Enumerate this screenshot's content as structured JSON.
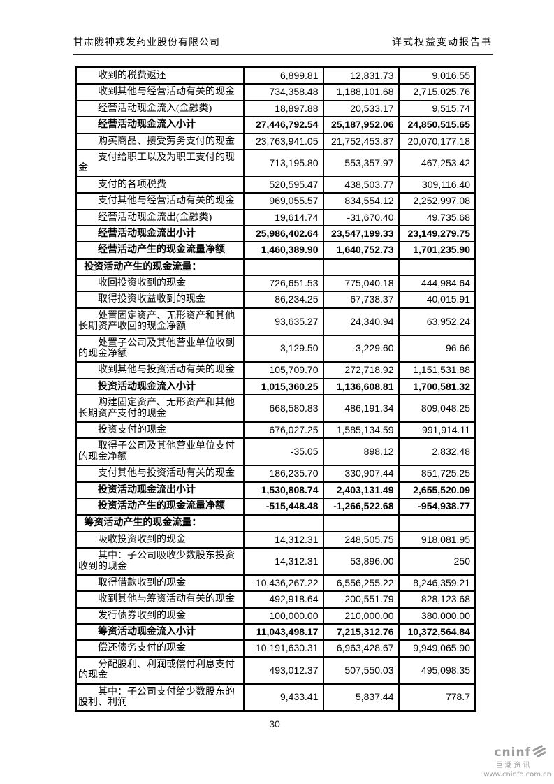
{
  "header": {
    "company": "甘肃陇神戎发药业股份有限公司",
    "doc_title": "详式权益变动报告书"
  },
  "table": {
    "rows": [
      {
        "label": "收到的税费返还",
        "style": "item",
        "values": [
          "6,899.81",
          "12,831.73",
          "9,016.55"
        ]
      },
      {
        "label": "收到其他与经营活动有关的现金",
        "style": "item",
        "values": [
          "734,358.48",
          "1,188,101.68",
          "2,715,025.76"
        ]
      },
      {
        "label": "经营活动现金流入(金融类)",
        "style": "item",
        "values": [
          "18,897.88",
          "20,533.17",
          "9,515.74"
        ]
      },
      {
        "label": "经营活动现金流入小计",
        "style": "subtotal",
        "values": [
          "27,446,792.54",
          "25,187,952.06",
          "24,850,515.65"
        ]
      },
      {
        "label": "购买商品、接受劳务支付的现金",
        "style": "item",
        "values": [
          "23,763,941.05",
          "21,752,453.87",
          "20,070,177.18"
        ]
      },
      {
        "label": "支付给职工以及为职工支付的现金",
        "style": "item",
        "values": [
          "713,195.80",
          "553,357.97",
          "467,253.42"
        ]
      },
      {
        "label": "支付的各项税费",
        "style": "item",
        "values": [
          "520,595.47",
          "438,503.77",
          "309,116.40"
        ]
      },
      {
        "label": "支付其他与经营活动有关的现金",
        "style": "item",
        "values": [
          "969,055.57",
          "834,554.12",
          "2,252,997.08"
        ]
      },
      {
        "label": "经营活动现金流出(金融类)",
        "style": "item",
        "values": [
          "19,614.74",
          "-31,670.40",
          "49,735.68"
        ]
      },
      {
        "label": "经营活动现金流出小计",
        "style": "subtotal",
        "values": [
          "25,986,402.64",
          "23,547,199.33",
          "23,149,279.75"
        ]
      },
      {
        "label": "经营活动产生的现金流量净额",
        "style": "subtotal",
        "values": [
          "1,460,389.90",
          "1,640,752.73",
          "1,701,235.90"
        ]
      },
      {
        "label": "投资活动产生的现金流量：",
        "style": "section",
        "values": [
          "",
          "",
          ""
        ]
      },
      {
        "label": "收回投资收到的现金",
        "style": "item",
        "values": [
          "726,651.53",
          "775,040.18",
          "444,984.64"
        ]
      },
      {
        "label": "取得投资收益收到的现金",
        "style": "item",
        "values": [
          "86,234.25",
          "67,738.37",
          "40,015.91"
        ]
      },
      {
        "label": "处置固定资产、无形资产和其他长期资产收回的现金净额",
        "style": "item",
        "values": [
          "93,635.27",
          "24,340.94",
          "63,952.24"
        ]
      },
      {
        "label": "处置子公司及其他营业单位收到的现金净额",
        "style": "item",
        "values": [
          "3,129.50",
          "-3,229.60",
          "96.66"
        ]
      },
      {
        "label": "收到其他与投资活动有关的现金",
        "style": "item",
        "values": [
          "105,709.70",
          "272,718.92",
          "1,151,531.88"
        ]
      },
      {
        "label": "投资活动现金流入小计",
        "style": "subtotal",
        "values": [
          "1,015,360.25",
          "1,136,608.81",
          "1,700,581.32"
        ]
      },
      {
        "label": "购建固定资产、无形资产和其他长期资产支付的现金",
        "style": "item",
        "values": [
          "668,580.83",
          "486,191.34",
          "809,048.25"
        ]
      },
      {
        "label": "投资支付的现金",
        "style": "item",
        "values": [
          "676,027.25",
          "1,585,134.59",
          "991,914.11"
        ]
      },
      {
        "label": "取得子公司及其他营业单位支付的现金净额",
        "style": "item",
        "values": [
          "-35.05",
          "898.12",
          "2,832.48"
        ]
      },
      {
        "label": "支付其他与投资活动有关的现金",
        "style": "item",
        "values": [
          "186,235.70",
          "330,907.44",
          "851,725.25"
        ]
      },
      {
        "label": "投资活动现金流出小计",
        "style": "subtotal",
        "values": [
          "1,530,808.74",
          "2,403,131.49",
          "2,655,520.09"
        ]
      },
      {
        "label": "投资活动产生的现金流量净额",
        "style": "subtotal",
        "values": [
          "-515,448.48",
          "-1,266,522.68",
          "-954,938.77"
        ]
      },
      {
        "label": "筹资活动产生的现金流量：",
        "style": "section",
        "values": [
          "",
          "",
          ""
        ]
      },
      {
        "label": "吸收投资收到的现金",
        "style": "item",
        "values": [
          "14,312.31",
          "248,505.75",
          "918,081.95"
        ]
      },
      {
        "label": "其中：子公司吸收少数股东投资收到的现金",
        "style": "item",
        "values": [
          "14,312.31",
          "53,896.00",
          "250"
        ]
      },
      {
        "label": "取得借款收到的现金",
        "style": "item",
        "values": [
          "10,436,267.22",
          "6,556,255.22",
          "8,246,359.21"
        ]
      },
      {
        "label": "收到其他与筹资活动有关的现金",
        "style": "item",
        "values": [
          "492,918.64",
          "200,551.79",
          "828,123.68"
        ]
      },
      {
        "label": "发行债券收到的现金",
        "style": "item",
        "values": [
          "100,000.00",
          "210,000.00",
          "380,000.00"
        ]
      },
      {
        "label": "筹资活动现金流入小计",
        "style": "subtotal",
        "values": [
          "11,043,498.17",
          "7,215,312.76",
          "10,372,564.84"
        ]
      },
      {
        "label": "偿还债务支付的现金",
        "style": "item",
        "values": [
          "10,191,630.31",
          "6,963,428.67",
          "9,949,065.90"
        ]
      },
      {
        "label": "分配股利、利润或偿付利息支付的现金",
        "style": "item",
        "values": [
          "493,012.37",
          "507,550.03",
          "495,098.35"
        ]
      },
      {
        "label": "其中：子公司支付给少数股东的股利、利润",
        "style": "item",
        "values": [
          "9,433.41",
          "5,837.44",
          "778.7"
        ]
      }
    ]
  },
  "footer": {
    "page_number": "30",
    "logo": {
      "brand": "cninf",
      "brand_cn": "巨潮资讯",
      "website": "www.cninfo.com.cn",
      "icon": "cninfo-swirl-icon"
    }
  },
  "colors": {
    "text": "#000000",
    "border": "#000000",
    "logo_gray": "#9c9c9c"
  }
}
